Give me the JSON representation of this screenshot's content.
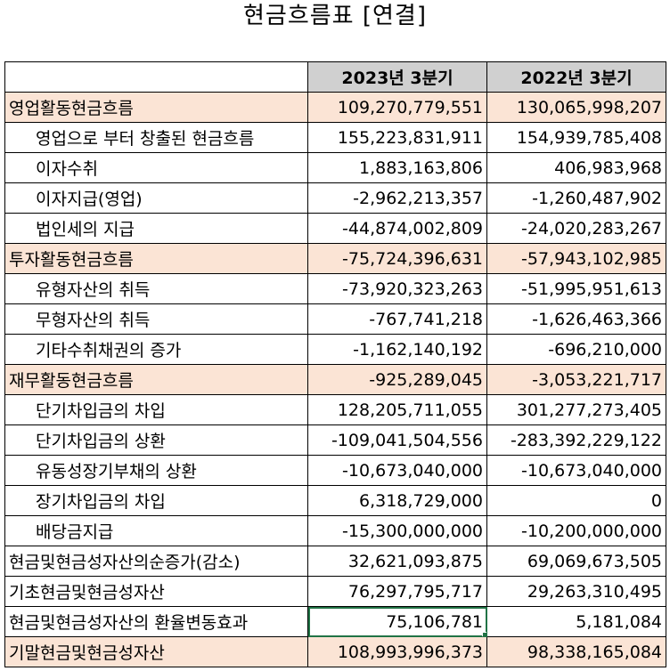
{
  "title": "현금흐름표 [연결]",
  "columns": [
    "",
    "2023년 3분기",
    "2022년 3분기"
  ],
  "rows": [
    {
      "label": "영업활동현금흐름",
      "v2023": "109,270,779,551",
      "v2022": "130,065,998,207",
      "section": true,
      "indent": false
    },
    {
      "label": "영업으로 부터 창출된 현금흐름",
      "v2023": "155,223,831,911",
      "v2022": "154,939,785,408",
      "section": false,
      "indent": true
    },
    {
      "label": "이자수취",
      "v2023": "1,883,163,806",
      "v2022": "406,983,968",
      "section": false,
      "indent": true
    },
    {
      "label": "이자지급(영업)",
      "v2023": "-2,962,213,357",
      "v2022": "-1,260,487,902",
      "section": false,
      "indent": true
    },
    {
      "label": "법인세의 지급",
      "v2023": "-44,874,002,809",
      "v2022": "-24,020,283,267",
      "section": false,
      "indent": true
    },
    {
      "label": "투자활동현금흐름",
      "v2023": "-75,724,396,631",
      "v2022": "-57,943,102,985",
      "section": true,
      "indent": false
    },
    {
      "label": "유형자산의 취득",
      "v2023": "-73,920,323,263",
      "v2022": "-51,995,951,613",
      "section": false,
      "indent": true
    },
    {
      "label": "무형자산의 취득",
      "v2023": "-767,741,218",
      "v2022": "-1,626,463,366",
      "section": false,
      "indent": true
    },
    {
      "label": "기타수취채권의 증가",
      "v2023": "-1,162,140,192",
      "v2022": "-696,210,000",
      "section": false,
      "indent": true
    },
    {
      "label": "재무활동현금흐름",
      "v2023": "-925,289,045",
      "v2022": "-3,053,221,717",
      "section": true,
      "indent": false
    },
    {
      "label": "단기차입금의 차입",
      "v2023": "128,205,711,055",
      "v2022": "301,277,273,405",
      "section": false,
      "indent": true
    },
    {
      "label": "단기차입금의 상환",
      "v2023": "-109,041,504,556",
      "v2022": "-283,392,229,122",
      "section": false,
      "indent": true
    },
    {
      "label": "유동성장기부채의 상환",
      "v2023": "-10,673,040,000",
      "v2022": "-10,673,040,000",
      "section": false,
      "indent": true
    },
    {
      "label": "장기차입금의 차입",
      "v2023": "6,318,729,000",
      "v2022": "0",
      "section": false,
      "indent": true
    },
    {
      "label": "배당금지급",
      "v2023": "-15,300,000,000",
      "v2022": "-10,200,000,000",
      "section": false,
      "indent": true
    },
    {
      "label": "현금및현금성자산의순증가(감소)",
      "v2023": "32,621,093,875",
      "v2022": "69,069,673,505",
      "section": false,
      "indent": false
    },
    {
      "label": "기초현금및현금성자산",
      "v2023": "76,297,795,717",
      "v2022": "29,263,310,495",
      "section": false,
      "indent": false
    },
    {
      "label": "현금및현금성자산의 환율변동효과",
      "v2023": "75,106,781",
      "v2022": "5,181,084",
      "section": false,
      "indent": false,
      "selected": true
    },
    {
      "label": "기말현금및현금성자산",
      "v2023": "108,993,996,373",
      "v2022": "98,338,165,084",
      "section": true,
      "indent": false
    }
  ]
}
